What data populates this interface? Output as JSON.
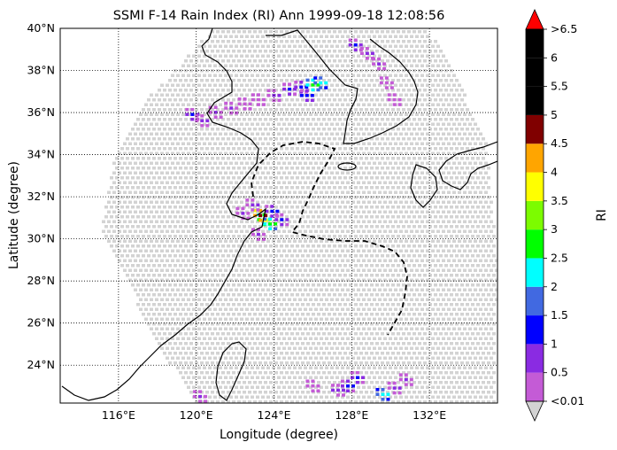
{
  "title": "SSMI F-14 Rain Index (RI) Ann 1999-09-18 12:08:56",
  "axes": {
    "xlabel": "Longitude (degree)",
    "ylabel": "Latitude (degree)",
    "lon_range": [
      113,
      135.5
    ],
    "lat_range": [
      22.2,
      40
    ],
    "x_ticks": [
      "116°E",
      "120°E",
      "124°E",
      "128°E",
      "132°E"
    ],
    "x_tick_values": [
      116,
      120,
      124,
      128,
      132
    ],
    "y_ticks": [
      "24°N",
      "26°N",
      "28°N",
      "30°N",
      "32°N",
      "34°N",
      "36°N",
      "38°N",
      "40°N"
    ],
    "y_tick_values": [
      24,
      26,
      28,
      30,
      32,
      34,
      36,
      38,
      40
    ],
    "grid": "dotted"
  },
  "colorbar": {
    "label": "RI",
    "levels": [
      "<0.01",
      "0.5",
      "1",
      "1.5",
      "2",
      "2.5",
      "3",
      "3.5",
      "4",
      "4.5",
      "5",
      "5.5",
      "6",
      ">6.5"
    ],
    "colors": [
      "#c45bd6",
      "#8a2be2",
      "#0000ff",
      "#4169e1",
      "#00ffff",
      "#00ff00",
      "#7cfc00",
      "#ffff00",
      "#ffa500",
      "#800000",
      "#000000",
      "#000000",
      "#000000"
    ],
    "under_color": "#d3d3d3",
    "over_color": "#ff0000"
  },
  "chart_data": {
    "type": "heatmap",
    "title": "SSMI F-14 Rain Index (RI) Ann 1999-09-18 12:08:56",
    "xlabel": "Longitude (degree)",
    "ylabel": "Latitude (degree)",
    "xlim": [
      113,
      135.5
    ],
    "ylim": [
      22.2,
      40
    ],
    "swath_background_value": "<0.01",
    "rain_cells": [
      {
        "lon": 119.8,
        "lat": 35.9,
        "ri": 1.0
      },
      {
        "lon": 120.3,
        "lat": 35.6,
        "ri": 0.7
      },
      {
        "lon": 121.0,
        "lat": 36.0,
        "ri": 0.6
      },
      {
        "lon": 121.8,
        "lat": 36.2,
        "ri": 0.5
      },
      {
        "lon": 122.5,
        "lat": 36.4,
        "ri": 0.4
      },
      {
        "lon": 123.2,
        "lat": 36.6,
        "ri": 0.4
      },
      {
        "lon": 124.0,
        "lat": 36.8,
        "ri": 0.7
      },
      {
        "lon": 124.8,
        "lat": 37.1,
        "ri": 1.0
      },
      {
        "lon": 125.4,
        "lat": 37.2,
        "ri": 1.2
      },
      {
        "lon": 126.0,
        "lat": 37.3,
        "ri": 2.7
      },
      {
        "lon": 126.4,
        "lat": 37.4,
        "ri": 2.2
      },
      {
        "lon": 125.7,
        "lat": 36.8,
        "ri": 1.3
      },
      {
        "lon": 128.2,
        "lat": 39.2,
        "ri": 1.0
      },
      {
        "lon": 128.8,
        "lat": 38.8,
        "ri": 0.7
      },
      {
        "lon": 129.4,
        "lat": 38.3,
        "ri": 0.5
      },
      {
        "lon": 129.8,
        "lat": 37.4,
        "ri": 0.4
      },
      {
        "lon": 130.2,
        "lat": 36.6,
        "ri": 0.4
      },
      {
        "lon": 123.5,
        "lat": 30.9,
        "ri": 3.2
      },
      {
        "lon": 123.3,
        "lat": 31.1,
        "ri": 4.7
      },
      {
        "lon": 123.8,
        "lat": 30.7,
        "ri": 2.7
      },
      {
        "lon": 123.9,
        "lat": 31.3,
        "ri": 1.2
      },
      {
        "lon": 122.9,
        "lat": 31.6,
        "ri": 0.7
      },
      {
        "lon": 124.4,
        "lat": 30.9,
        "ri": 1.0
      },
      {
        "lon": 123.2,
        "lat": 30.2,
        "ri": 0.5
      },
      {
        "lon": 122.4,
        "lat": 31.2,
        "ri": 0.5
      },
      {
        "lon": 127.8,
        "lat": 23.0,
        "ri": 1.2
      },
      {
        "lon": 128.3,
        "lat": 23.4,
        "ri": 1.0
      },
      {
        "lon": 127.3,
        "lat": 22.8,
        "ri": 0.9
      },
      {
        "lon": 129.6,
        "lat": 22.6,
        "ri": 2.2
      },
      {
        "lon": 130.2,
        "lat": 22.9,
        "ri": 0.7
      },
      {
        "lon": 130.8,
        "lat": 23.3,
        "ri": 0.5
      },
      {
        "lon": 120.2,
        "lat": 22.5,
        "ri": 0.5
      },
      {
        "lon": 126.0,
        "lat": 23.0,
        "ri": 0.4
      }
    ]
  }
}
